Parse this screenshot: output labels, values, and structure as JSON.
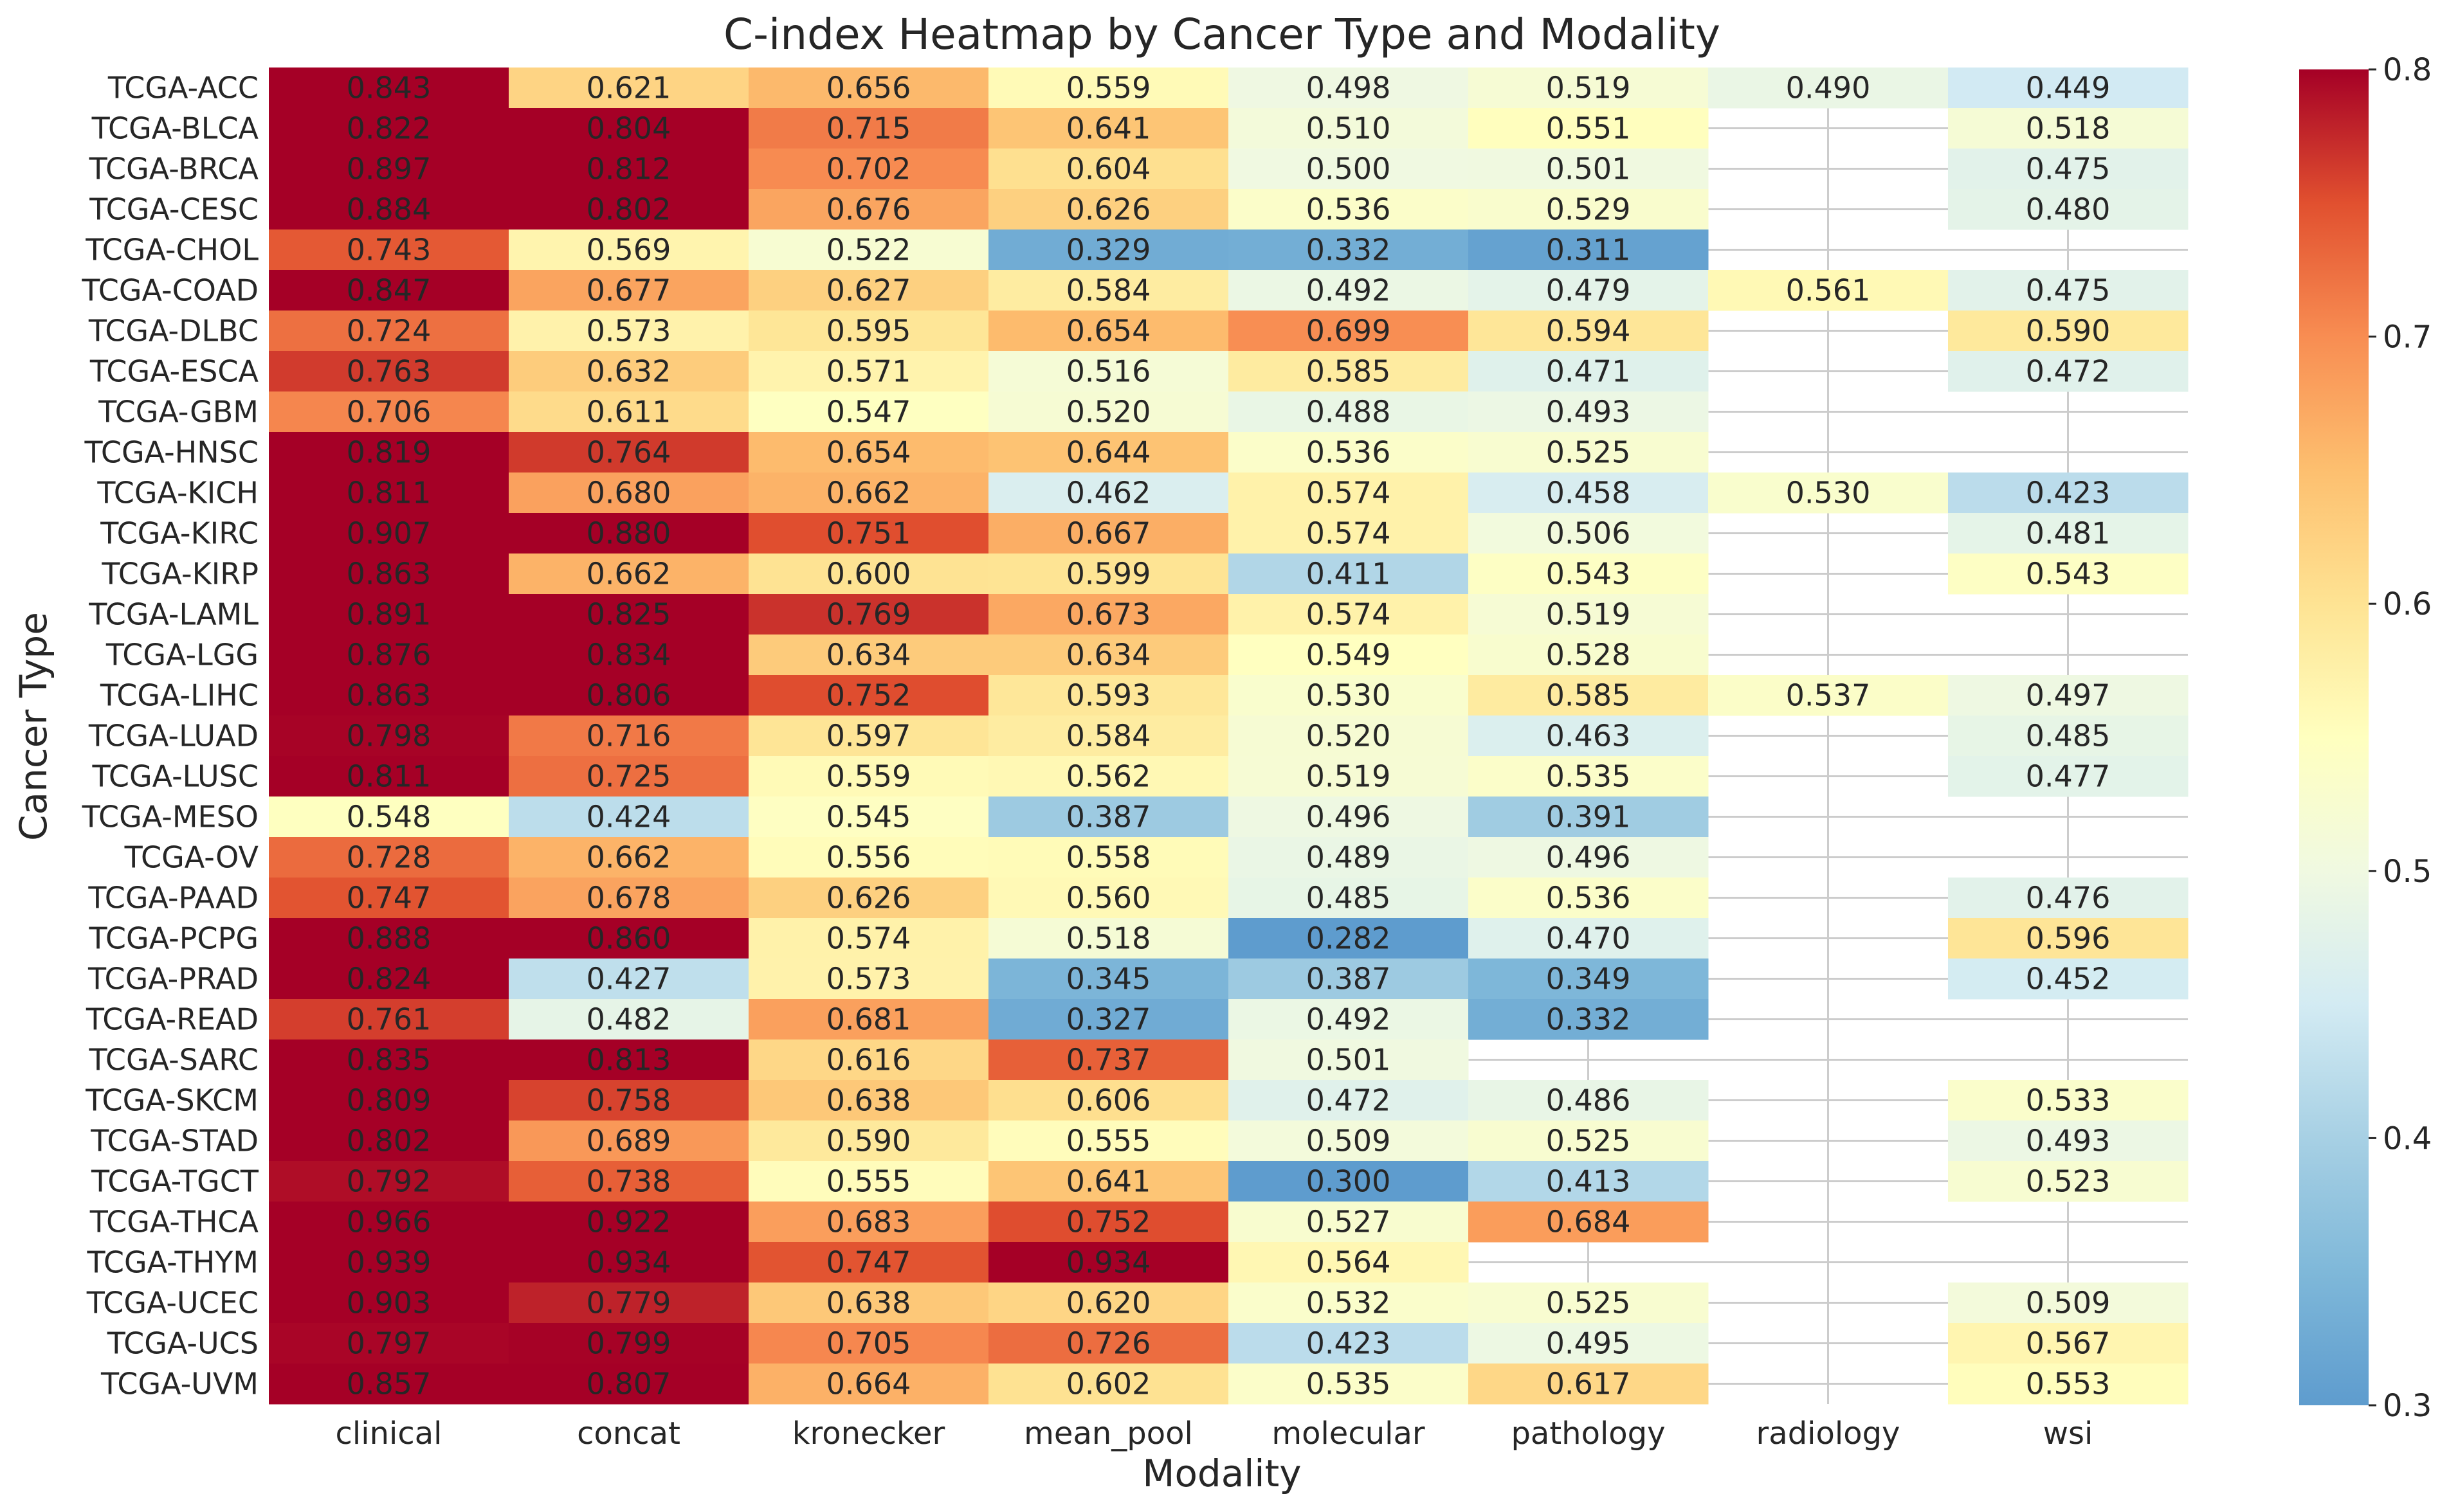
{
  "chart_data": {
    "type": "heatmap",
    "title": "C-index Heatmap by Cancer Type and Modality",
    "xlabel": "Modality",
    "ylabel": "Cancer Type",
    "x_categories": [
      "clinical",
      "concat",
      "kronecker",
      "mean_pool",
      "molecular",
      "pathology",
      "radiology",
      "wsi"
    ],
    "y_categories": [
      "TCGA-ACC",
      "TCGA-BLCA",
      "TCGA-BRCA",
      "TCGA-CESC",
      "TCGA-CHOL",
      "TCGA-COAD",
      "TCGA-DLBC",
      "TCGA-ESCA",
      "TCGA-GBM",
      "TCGA-HNSC",
      "TCGA-KICH",
      "TCGA-KIRC",
      "TCGA-KIRP",
      "TCGA-LAML",
      "TCGA-LGG",
      "TCGA-LIHC",
      "TCGA-LUAD",
      "TCGA-LUSC",
      "TCGA-MESO",
      "TCGA-OV",
      "TCGA-PAAD",
      "TCGA-PCPG",
      "TCGA-PRAD",
      "TCGA-READ",
      "TCGA-SARC",
      "TCGA-SKCM",
      "TCGA-STAD",
      "TCGA-TGCT",
      "TCGA-THCA",
      "TCGA-THYM",
      "TCGA-UCEC",
      "TCGA-UCS",
      "TCGA-UVM"
    ],
    "values": [
      [
        0.843,
        0.621,
        0.656,
        0.559,
        0.498,
        0.519,
        0.49,
        0.449
      ],
      [
        0.822,
        0.804,
        0.715,
        0.641,
        0.51,
        0.551,
        null,
        0.518
      ],
      [
        0.897,
        0.812,
        0.702,
        0.604,
        0.5,
        0.501,
        null,
        0.475
      ],
      [
        0.884,
        0.802,
        0.676,
        0.626,
        0.536,
        0.529,
        null,
        0.48
      ],
      [
        0.743,
        0.569,
        0.522,
        0.329,
        0.332,
        0.311,
        null,
        null
      ],
      [
        0.847,
        0.677,
        0.627,
        0.584,
        0.492,
        0.479,
        0.561,
        0.475
      ],
      [
        0.724,
        0.573,
        0.595,
        0.654,
        0.699,
        0.594,
        null,
        0.59
      ],
      [
        0.763,
        0.632,
        0.571,
        0.516,
        0.585,
        0.471,
        null,
        0.472
      ],
      [
        0.706,
        0.611,
        0.547,
        0.52,
        0.488,
        0.493,
        null,
        null
      ],
      [
        0.819,
        0.764,
        0.654,
        0.644,
        0.536,
        0.525,
        null,
        null
      ],
      [
        0.811,
        0.68,
        0.662,
        0.462,
        0.574,
        0.458,
        0.53,
        0.423
      ],
      [
        0.907,
        0.88,
        0.751,
        0.667,
        0.574,
        0.506,
        null,
        0.481
      ],
      [
        0.863,
        0.662,
        0.6,
        0.599,
        0.411,
        0.543,
        null,
        0.543
      ],
      [
        0.891,
        0.825,
        0.769,
        0.673,
        0.574,
        0.519,
        null,
        null
      ],
      [
        0.876,
        0.834,
        0.634,
        0.634,
        0.549,
        0.528,
        null,
        null
      ],
      [
        0.863,
        0.806,
        0.752,
        0.593,
        0.53,
        0.585,
        0.537,
        0.497
      ],
      [
        0.798,
        0.716,
        0.597,
        0.584,
        0.52,
        0.463,
        null,
        0.485
      ],
      [
        0.811,
        0.725,
        0.559,
        0.562,
        0.519,
        0.535,
        null,
        0.477
      ],
      [
        0.548,
        0.424,
        0.545,
        0.387,
        0.496,
        0.391,
        null,
        null
      ],
      [
        0.728,
        0.662,
        0.556,
        0.558,
        0.489,
        0.496,
        null,
        null
      ],
      [
        0.747,
        0.678,
        0.626,
        0.56,
        0.485,
        0.536,
        null,
        0.476
      ],
      [
        0.888,
        0.86,
        0.574,
        0.518,
        0.282,
        0.47,
        null,
        0.596
      ],
      [
        0.824,
        0.427,
        0.573,
        0.345,
        0.387,
        0.349,
        null,
        0.452
      ],
      [
        0.761,
        0.482,
        0.681,
        0.327,
        0.492,
        0.332,
        null,
        null
      ],
      [
        0.835,
        0.813,
        0.616,
        0.737,
        0.501,
        null,
        null,
        null
      ],
      [
        0.809,
        0.758,
        0.638,
        0.606,
        0.472,
        0.486,
        null,
        0.533
      ],
      [
        0.802,
        0.689,
        0.59,
        0.555,
        0.509,
        0.525,
        null,
        0.493
      ],
      [
        0.792,
        0.738,
        0.555,
        0.641,
        0.3,
        0.413,
        null,
        0.523
      ],
      [
        0.966,
        0.922,
        0.683,
        0.752,
        0.527,
        0.684,
        null,
        null
      ],
      [
        0.939,
        0.934,
        0.747,
        0.934,
        0.564,
        null,
        null,
        null
      ],
      [
        0.903,
        0.779,
        0.638,
        0.62,
        0.532,
        0.525,
        null,
        0.509
      ],
      [
        0.797,
        0.799,
        0.705,
        0.726,
        0.423,
        0.495,
        null,
        0.567
      ],
      [
        0.857,
        0.807,
        0.664,
        0.602,
        0.535,
        0.617,
        null,
        0.553
      ]
    ],
    "color_range": [
      0.3,
      0.8
    ],
    "colorbar_ticks": [
      "0.3",
      "0.4",
      "0.5",
      "0.6",
      "0.7",
      "0.8"
    ],
    "colormap": "RdYlBu_r",
    "grid": true
  }
}
